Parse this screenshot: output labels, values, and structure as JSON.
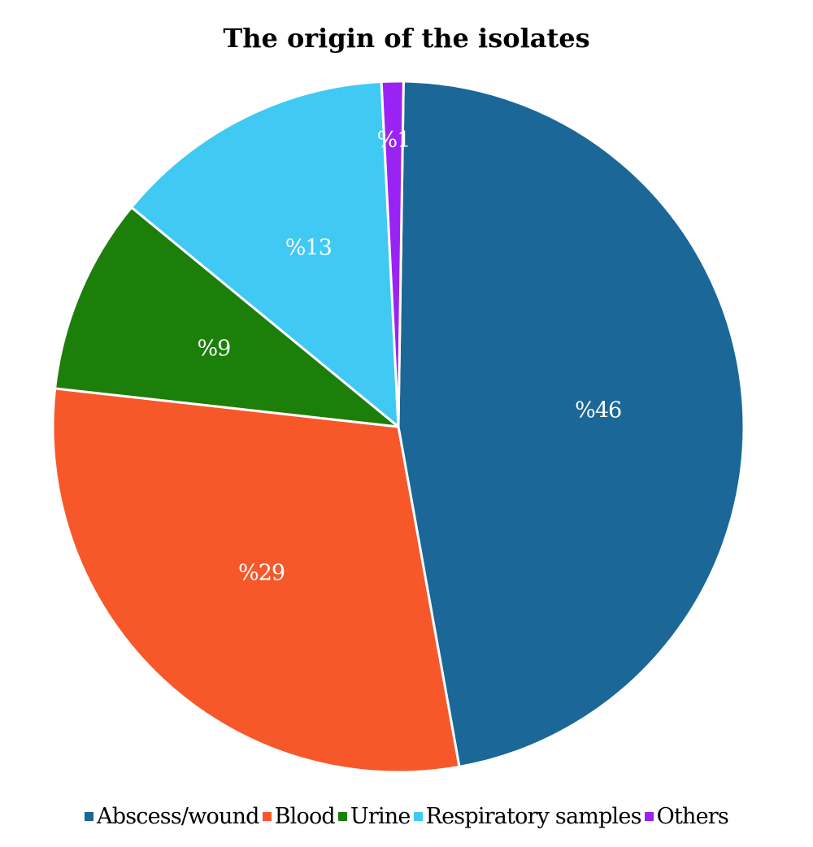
{
  "chart_data": {
    "type": "pie",
    "title": "The origin of the isolates",
    "slices": [
      {
        "label": "Abscess/wound",
        "value": 46,
        "data_label": "%46",
        "color": "#1b6798"
      },
      {
        "label": "Blood",
        "value": 29,
        "data_label": "%29",
        "color": "#f7582a"
      },
      {
        "label": "Urine",
        "value": 9,
        "data_label": "%9",
        "color": "#1c7f0a"
      },
      {
        "label": "Respiratory samples",
        "value": 13,
        "data_label": "%13",
        "color": "#40c9f2"
      },
      {
        "label": "Others",
        "value": 1,
        "data_label": "%1",
        "color": "#9a23f4"
      }
    ],
    "legend_position": "bottom"
  }
}
